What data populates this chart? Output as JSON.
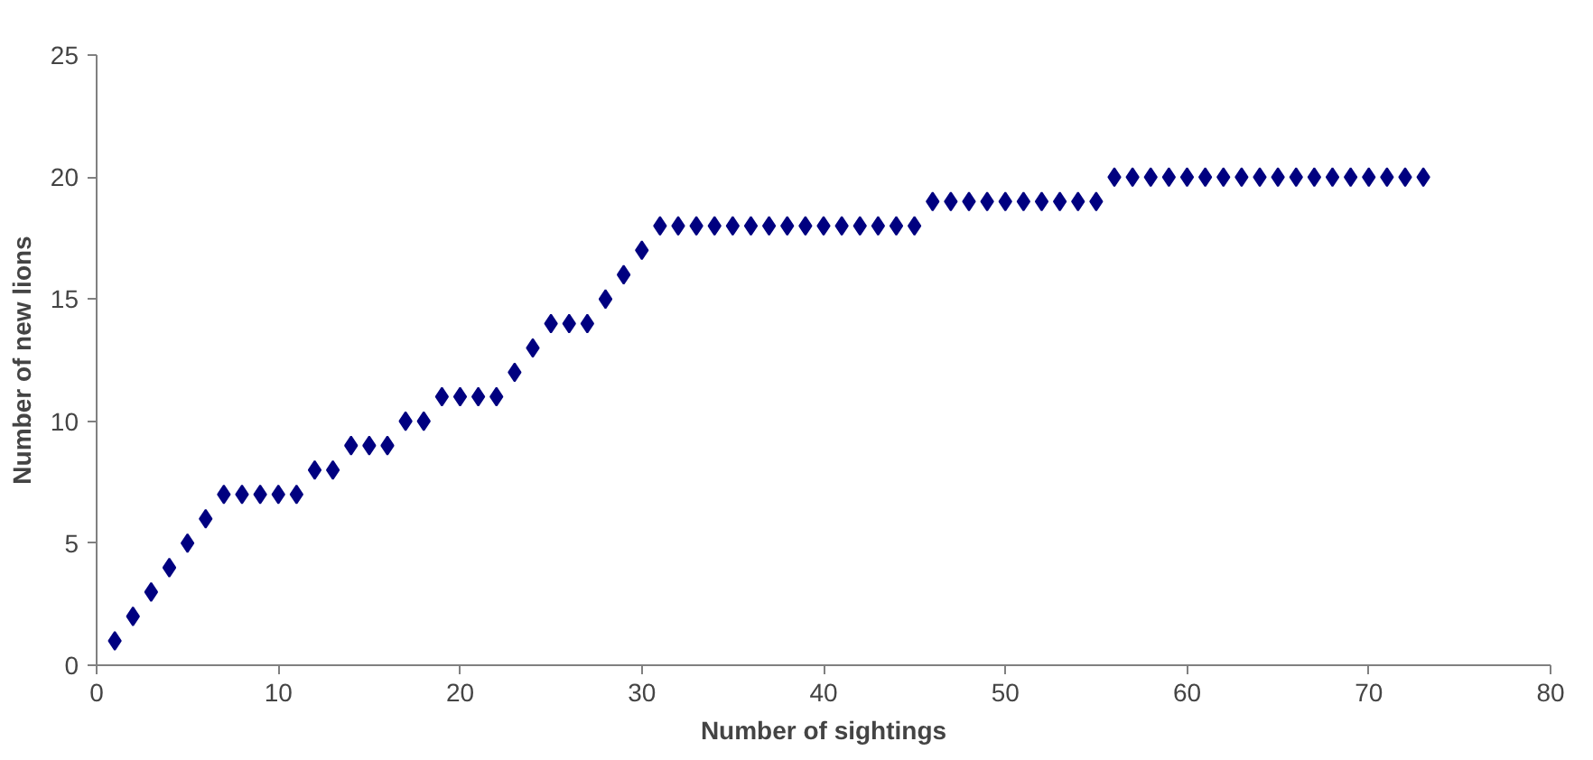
{
  "chart_data": {
    "type": "scatter",
    "xlabel": "Number of sightings",
    "ylabel": "Number of new lions",
    "x": [
      1,
      2,
      3,
      4,
      5,
      6,
      7,
      8,
      9,
      10,
      11,
      12,
      13,
      14,
      15,
      16,
      17,
      18,
      19,
      20,
      21,
      22,
      23,
      24,
      25,
      26,
      27,
      28,
      29,
      30,
      31,
      32,
      33,
      34,
      35,
      36,
      37,
      38,
      39,
      40,
      41,
      42,
      43,
      44,
      45,
      46,
      47,
      48,
      49,
      50,
      51,
      52,
      53,
      54,
      55,
      56,
      57,
      58,
      59,
      60,
      61,
      62,
      63,
      64,
      65,
      66,
      67,
      68,
      69,
      70,
      71,
      72,
      73
    ],
    "series": [
      {
        "color": "#000080",
        "values": [
          1,
          2,
          3,
          4,
          5,
          6,
          7,
          7,
          7,
          7,
          7,
          8,
          8,
          9,
          9,
          9,
          10,
          10,
          11,
          11,
          11,
          11,
          12,
          13,
          14,
          14,
          14,
          15,
          16,
          17,
          18,
          18,
          18,
          18,
          18,
          18,
          18,
          18,
          18,
          18,
          18,
          18,
          18,
          18,
          18,
          19,
          19,
          19,
          19,
          19,
          19,
          19,
          19,
          19,
          19,
          20,
          20,
          20,
          20,
          20,
          20,
          20,
          20,
          20,
          20,
          20,
          20,
          20,
          20,
          20,
          20,
          20,
          20
        ]
      }
    ],
    "xlim": [
      0,
      80
    ],
    "xticks": [
      0,
      10,
      20,
      30,
      40,
      50,
      60,
      70,
      80
    ],
    "ylim": [
      0,
      25
    ],
    "yticks": [
      0,
      5,
      10,
      15,
      20,
      25
    ],
    "marker": "diamond",
    "grid": false
  }
}
